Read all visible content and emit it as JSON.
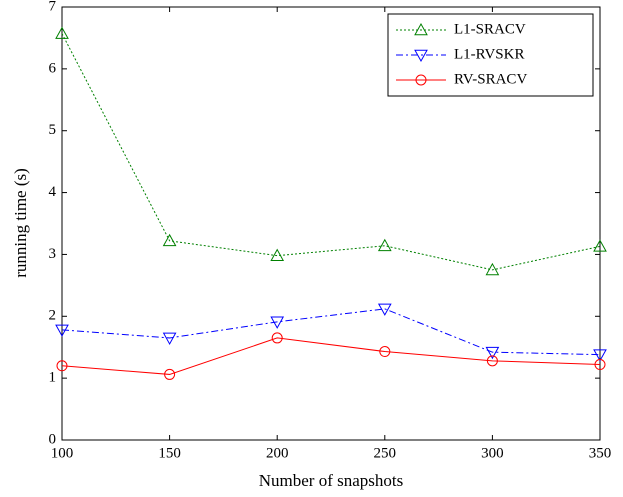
{
  "chart_data": {
    "type": "line",
    "x_label": "Number of snapshots",
    "y_label": "running time (s)",
    "x": [
      100,
      150,
      200,
      250,
      300,
      350
    ],
    "series": [
      {
        "name": "L1-SRACV",
        "color": "#008000",
        "dash": "dotted",
        "marker": "triangle-up",
        "values": [
          6.57,
          3.22,
          2.98,
          3.14,
          2.75,
          3.13
        ]
      },
      {
        "name": "L1-RVSKR",
        "color": "#0000ff",
        "dash": "dash-dot",
        "marker": "triangle-down",
        "values": [
          1.78,
          1.65,
          1.91,
          2.12,
          1.42,
          1.38
        ]
      },
      {
        "name": "RV-SRACV",
        "color": "#ff0000",
        "dash": "solid",
        "marker": "circle",
        "values": [
          1.2,
          1.06,
          1.65,
          1.43,
          1.28,
          1.22
        ]
      }
    ],
    "xlim": [
      100,
      350
    ],
    "xticks": [
      100,
      150,
      200,
      250,
      300,
      350
    ],
    "ylim": [
      0,
      7
    ],
    "yticks": [
      0,
      1,
      2,
      3,
      4,
      5,
      6,
      7
    ],
    "legend": "upper-right"
  }
}
